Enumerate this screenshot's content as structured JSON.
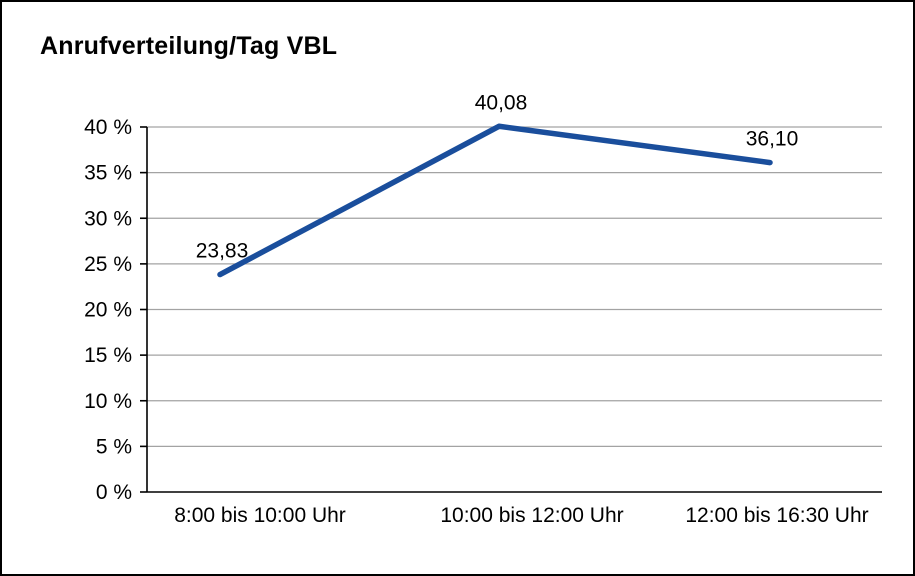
{
  "title": "Anrufverteilung/Tag VBL",
  "chart_data": {
    "type": "line",
    "title": "Anrufverteilung/Tag VBL",
    "categories": [
      "8:00 bis 10:00 Uhr",
      "10:00 bis 12:00 Uhr",
      "12:00 bis 16:30 Uhr"
    ],
    "values": [
      23.83,
      40.08,
      36.1
    ],
    "value_labels": [
      "23,83",
      "40,08",
      "36,10"
    ],
    "xlabel": "",
    "ylabel": "",
    "ylim": [
      0,
      40
    ],
    "ytick_step": 5,
    "ytick_labels": [
      "0 %",
      "5 %",
      "10 %",
      "15 %",
      "20 %",
      "25 %",
      "30 %",
      "35 %",
      "40 %"
    ],
    "grid": true,
    "legend": false,
    "colors": {
      "line": "#1a4e9c",
      "grid": "#a3a3a3",
      "axis": "#000000",
      "background": "#ffffff",
      "frame_border": "#000000"
    }
  }
}
